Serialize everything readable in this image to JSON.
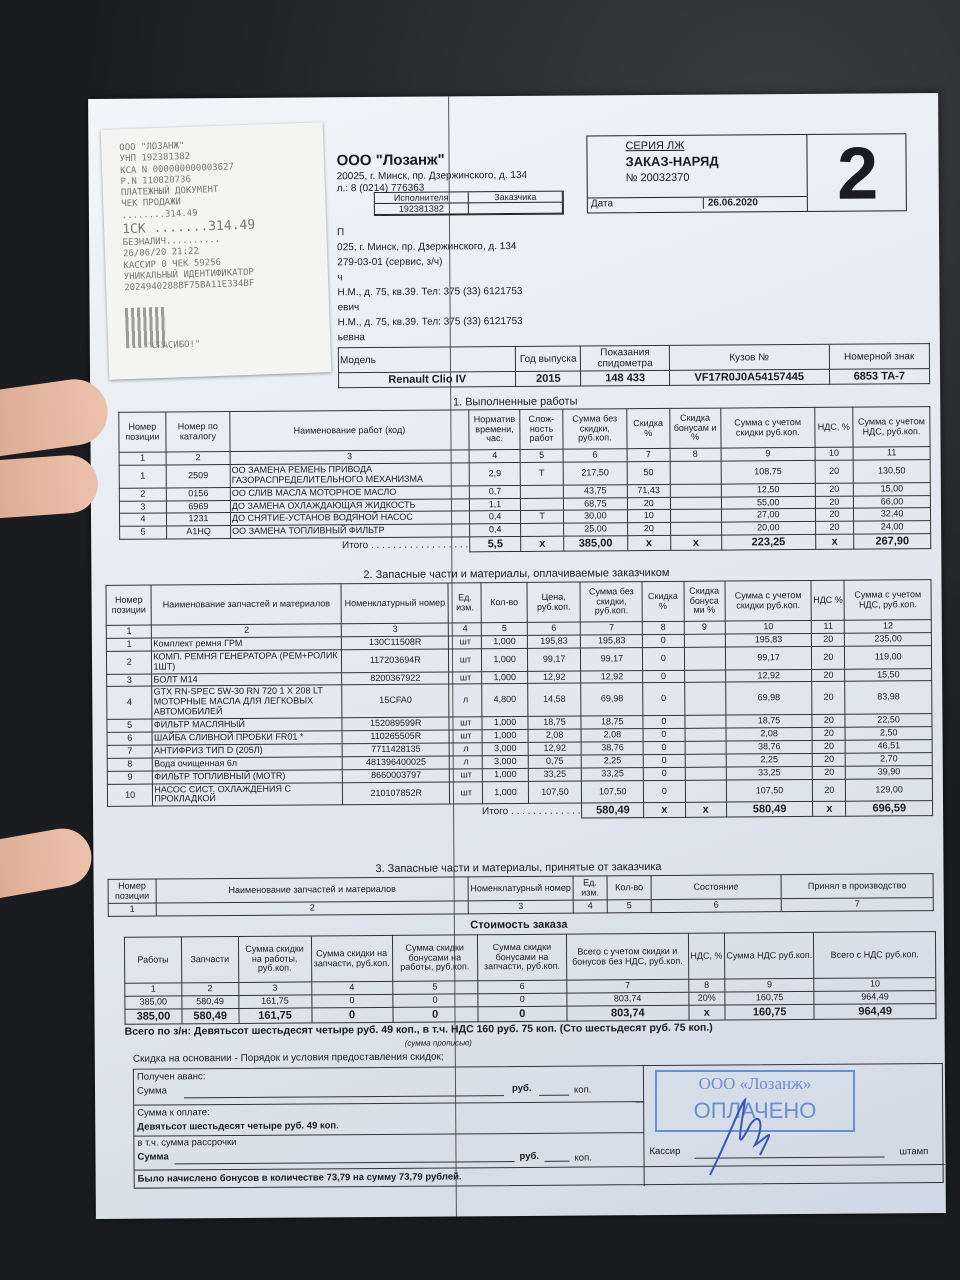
{
  "receipt": {
    "lines": [
      "ООО \"ЛОЗАНЖ\"",
      "УНП 192381382",
      "КСА N 000000000003627",
      "Р.N 110020736",
      "ПЛАТЕЖНЫЙ ДОКУМЕНТ",
      "ЧЕК ПРОДАЖИ",
      "........314.49",
      "1СК .......314.49",
      "БЕЗНАЛИЧ..........",
      "26/06/20 21:22",
      "КАССИР 0   ЧЕК 59256",
      "УНИКАЛЬНЫЙ ИДЕНТИФИКАТОР",
      "2024940288BF75BA11E334BF"
    ],
    "thanks": "\"СПАСИБО!\""
  },
  "header": {
    "company": "ООО \"Лозанж\"",
    "address": "20025, г. Минск, пр. Дзержинского, д. 134",
    "phone": "л.: 8 (0214) 776363",
    "series": "СЕРИЯ ЛЖ",
    "doc_title": "ЗАКАЗ-НАРЯД",
    "doc_number": "№ 20032370",
    "date_label": "Дата",
    "date": "26.06.2020",
    "copy_number": "2",
    "executor_label": "Исполнителя",
    "customer_label": "Заказчика",
    "executor_unp": "192381382",
    "info_lines": [
      "П",
      "025, г. Минск, пр. Дзержинского, д. 134",
      "279-03-01 (сервис, з/ч)",
      "ч",
      "Н.М., д. 75, кв.39. Тел: 375 (33) 6121753",
      "евич",
      "Н.М., д. 75, кв.39. Тел: 375 (33) 6121753",
      "ьевна"
    ]
  },
  "vehicle": {
    "headers": [
      "Модель",
      "Год выпуска",
      "Показания спидометра",
      "Кузов №",
      "Номерной знак"
    ],
    "values": [
      "Renault Clio IV",
      "2015",
      "148 433",
      "VF17R0J0A54157445",
      "6853 ТА-7"
    ]
  },
  "works": {
    "title": "1. Выполненные работы",
    "headers": [
      "Номер позиции",
      "Номер по каталогу",
      "Наименование работ (код)",
      "Норматив времени, час.",
      "Слож-ность работ",
      "Сумма без скидки, руб.коп.",
      "Скидка %",
      "Скидка бонусам и %",
      "Сумма с учетом скидки руб.коп.",
      "НДС, %",
      "Сумма с учетом НДС, руб.коп."
    ],
    "col_numbers": [
      "1",
      "2",
      "3",
      "4",
      "5",
      "6",
      "7",
      "8",
      "9",
      "10",
      "11"
    ],
    "rows": [
      [
        "1",
        "2509",
        "ОО ЗАМЕНА РЕМЕНЬ ПРИВОДА ГАЗОРАСПРЕДЕЛИТЕЛЬНОГО МЕХАНИЗМА",
        "2,9",
        "Т",
        "217,50",
        "50",
        "",
        "108,75",
        "20",
        "130,50"
      ],
      [
        "2",
        "0156",
        "ОО СЛИВ МАСЛА МОТОРНОЕ МАСЛО",
        "0,7",
        "",
        "43,75",
        "71,43",
        "",
        "12,50",
        "20",
        "15,00"
      ],
      [
        "3",
        "6969",
        "ДО ЗАМЕНА ОХЛАЖДАЮЩАЯ ЖИДКОСТЬ",
        "1,1",
        "",
        "68,75",
        "20",
        "",
        "55,00",
        "20",
        "66,00"
      ],
      [
        "4",
        "1231",
        "ДО СНЯТИЕ-УСТАНОВ ВОДЯНОЙ НАСОС",
        "0,4",
        "Т",
        "30,00",
        "10",
        "",
        "27,00",
        "20",
        "32,40"
      ],
      [
        "5",
        "A1HQ",
        "ОО ЗАМЕНА ТОПЛИВНЫЙ ФИЛЬТР",
        "0,4",
        "",
        "25,00",
        "20",
        "",
        "20,00",
        "20",
        "24,00"
      ]
    ],
    "total": [
      "Итого . . . . . . . . . . . . . . . . . .",
      "5,5",
      "x",
      "385,00",
      "x",
      "x",
      "223,25",
      "x",
      "267,90"
    ]
  },
  "parts": {
    "title": "2. Запасные части и материалы, оплачиваемые заказчиком",
    "headers": [
      "Номер позиции",
      "Наименование запчастей и материалов",
      "Номенклатурный номер",
      "Ед. изм.",
      "Кол-во",
      "Цена, руб.коп.",
      "Сумма без скидки, руб.коп.",
      "Скидка %",
      "Скидка бонуса ми %",
      "Сумма с учетом скидки руб.коп.",
      "НДС %",
      "Сумма с учетом НДС, руб.коп."
    ],
    "col_numbers": [
      "1",
      "2",
      "3",
      "4",
      "5",
      "6",
      "7",
      "8",
      "9",
      "10",
      "11",
      "12"
    ],
    "rows": [
      [
        "1",
        "Комплект ремня ГРМ",
        "130C11508R",
        "шт",
        "1,000",
        "195,83",
        "195,83",
        "0",
        "",
        "195,83",
        "20",
        "235,00"
      ],
      [
        "2",
        "КОМП. РЕМНЯ ГЕНЕРАТОРА (РЕМ+РОЛИК 1ШТ)",
        "117203694R",
        "шт",
        "1,000",
        "99,17",
        "99,17",
        "0",
        "",
        "99,17",
        "20",
        "119,00"
      ],
      [
        "3",
        "БОЛТ М14",
        "8200367922",
        "шт",
        "1,000",
        "12,92",
        "12,92",
        "0",
        "",
        "12,92",
        "20",
        "15,50"
      ],
      [
        "4",
        "GTX RN-SPEC 5W-30 RN 720 1 X 208 LT МОТОРНЫЕ МАСЛА ДЛЯ ЛЕГКОВЫХ АВТОМОБИЛЕЙ",
        "15CFA0",
        "л",
        "4,800",
        "14,58",
        "69,98",
        "0",
        "",
        "69,98",
        "20",
        "83,98"
      ],
      [
        "5",
        "ФИЛЬТР МАСЛЯНЫЙ",
        "152089599R",
        "шт",
        "1,000",
        "18,75",
        "18,75",
        "0",
        "",
        "18,75",
        "20",
        "22,50"
      ],
      [
        "6",
        "ШАЙБА СЛИВНОЙ ПРОБКИ FR01 *",
        "110265505R",
        "шт",
        "1,000",
        "2,08",
        "2,08",
        "0",
        "",
        "2,08",
        "20",
        "2,50"
      ],
      [
        "7",
        "АНТИФРИЗ ТИП D (205Л)",
        "7711428135",
        "л",
        "3,000",
        "12,92",
        "38,76",
        "0",
        "",
        "38,76",
        "20",
        "46,51"
      ],
      [
        "8",
        "Вода очищенная 6л",
        "481396400025",
        "л",
        "3,000",
        "0,75",
        "2,25",
        "0",
        "",
        "2,25",
        "20",
        "2,70"
      ],
      [
        "9",
        "ФИЛЬТР ТОПЛИВНЫЙ (MOTR)",
        "8660003797",
        "шт",
        "1,000",
        "33,25",
        "33,25",
        "0",
        "",
        "33,25",
        "20",
        "39,90"
      ],
      [
        "10",
        "НАСОС СИСТ. ОХЛАЖДЕНИЯ С ПРОКЛАДКОЙ",
        "210107852R",
        "шт",
        "1,000",
        "107,50",
        "107,50",
        "0",
        "",
        "107,50",
        "20",
        "129,00"
      ]
    ],
    "total": [
      "Итого . . . . . . . . . . . . .",
      "580,49",
      "x",
      "x",
      "580,49",
      "x",
      "696,59"
    ]
  },
  "accepted": {
    "title": "3. Запасные части и материалы, принятые от заказчика",
    "headers": [
      "Номер позиции",
      "Наименование запчастей и материалов",
      "Номенклатурный номер",
      "Ед. изм.",
      "Кол-во",
      "Состояние",
      "Принял в производство"
    ],
    "col_numbers": [
      "1",
      "2",
      "3",
      "4",
      "5",
      "6",
      "7"
    ]
  },
  "cost": {
    "title": "Стоимость заказа",
    "headers": [
      "Работы",
      "Запчасти",
      "Сумма скидки на работы, руб.коп.",
      "Сумма скидки на запчасти, руб.коп.",
      "Сумма скидки бонусами на работы, руб.коп.",
      "Сумма скидки бонусами на запчасти, руб.коп.",
      "Всего с учетом скидки и бонусов без НДС, руб.коп.",
      "НДС, %",
      "Сумма НДС руб.коп.",
      "Всего с НДС руб.коп."
    ],
    "col_numbers": [
      "1",
      "2",
      "3",
      "4",
      "5",
      "6",
      "7",
      "8",
      "9",
      "10"
    ],
    "rows": [
      [
        "385,00",
        "580,49",
        "161,75",
        "0",
        "0",
        "0",
        "803,74",
        "20%",
        "160,75",
        "964,49"
      ],
      [
        "385,00",
        "580,49",
        "161,75",
        "0",
        "0",
        "0",
        "803,74",
        "x",
        "160,75",
        "964,49"
      ]
    ]
  },
  "total_text": "Всего по з/н: Девятьсот шестьдесят четыре руб. 49 коп., в т.ч. НДС 160 руб. 75 коп. (Сто шестьдесят руб. 75 коп.)",
  "sum_note": "(сумма прописью)",
  "discount_note": "Скидка на основании - Порядок и условия предоставления скидок;",
  "payment": {
    "advance_label": "Получен аванс:",
    "sum_label": "Сумма",
    "rub": "руб.",
    "kop": "коп.",
    "to_pay_label": "Сумма к оплате:",
    "to_pay_value": "Девятьсот шестьдесят четыре руб. 49 коп.",
    "installment_label": "в т.ч. сумма рассрочки",
    "sum_label2": "Сумма",
    "bonus_note": "Было начислено бонусов в количестве 73,79 на сумму 73,79 рублей.",
    "cashier_label": "Кассир",
    "stamp_label": "штамп"
  },
  "stamp": {
    "company": "ООО «Лозанж»",
    "status": "ОПЛАЧЕНО",
    "color": "#6b8ed0"
  }
}
